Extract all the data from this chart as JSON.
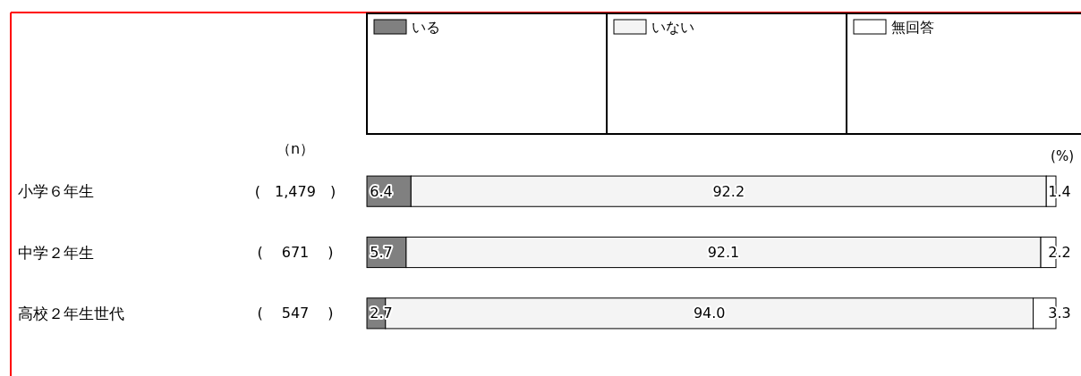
{
  "chart_data": {
    "type": "bar",
    "orientation": "horizontal",
    "stacked": true,
    "categories": [
      "小学６年生",
      "中学２年生",
      "高校２年生世代"
    ],
    "series": [
      {
        "name": "いる",
        "color": "#808080",
        "values": [
          6.4,
          5.7,
          2.7
        ],
        "value_labels": [
          "6.4",
          "5.7",
          "2.7"
        ]
      },
      {
        "name": "いない",
        "color": "#f4f4f4",
        "values": [
          92.2,
          92.1,
          94.0
        ],
        "value_labels": [
          "92.2",
          "92.1",
          "94.0"
        ]
      },
      {
        "name": "無回答",
        "color": "#ffffff",
        "values": [
          1.4,
          2.2,
          3.3
        ],
        "value_labels": [
          "1.4",
          "2.2",
          "3.3"
        ]
      }
    ],
    "xlim": [
      0,
      100
    ],
    "legend": "top",
    "annotations": [
      "（n）",
      "(　1,479　)",
      "(　 671　 )",
      "(　 547　 )",
      "(%)"
    ]
  }
}
